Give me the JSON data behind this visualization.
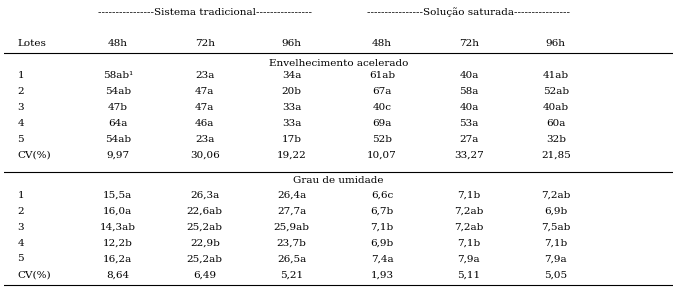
{
  "title_row1": "----------------Sistema tradicional----------------",
  "title_row2": "----------------Solução saturada----------------",
  "col_headers": [
    "Lotes",
    "48h",
    "72h",
    "96h",
    "48h",
    "72h",
    "96h"
  ],
  "section1_title": "Envelhecimento acelerado",
  "section1_rows": [
    [
      "1",
      "58ab¹",
      "23a",
      "34a",
      "61ab",
      "40a",
      "41ab"
    ],
    [
      "2",
      "54ab",
      "47a",
      "20b",
      "67a",
      "58a",
      "52ab"
    ],
    [
      "3",
      "47b",
      "47a",
      "33a",
      "40c",
      "40a",
      "40ab"
    ],
    [
      "4",
      "64a",
      "46a",
      "33a",
      "69a",
      "53a",
      "60a"
    ],
    [
      "5",
      "54ab",
      "23a",
      "17b",
      "52b",
      "27a",
      "32b"
    ],
    [
      "CV(%)",
      "9,97",
      "30,06",
      "19,22",
      "10,07",
      "33,27",
      "21,85"
    ]
  ],
  "section2_title": "Grau de umidade",
  "section2_rows": [
    [
      "1",
      "15,5a",
      "26,3a",
      "26,4a",
      "6,6c",
      "7,1b",
      "7,2ab"
    ],
    [
      "2",
      "16,0a",
      "22,6ab",
      "27,7a",
      "6,7b",
      "7,2ab",
      "6,9b"
    ],
    [
      "3",
      "14,3ab",
      "25,2ab",
      "25,9ab",
      "7,1b",
      "7,2ab",
      "7,5ab"
    ],
    [
      "4",
      "12,2b",
      "22,9b",
      "23,7b",
      "6,9b",
      "7,1b",
      "7,1b"
    ],
    [
      "5",
      "16,2a",
      "25,2ab",
      "26,5a",
      "7,4a",
      "7,9a",
      "7,9a"
    ],
    [
      "CV(%)",
      "8,64",
      "6,49",
      "5,21",
      "1,93",
      "5,11",
      "5,05"
    ]
  ],
  "figsize": [
    6.77,
    2.95
  ],
  "dpi": 100,
  "font_size": 7.5,
  "bg_color": "#ffffff",
  "text_color": "#000000"
}
